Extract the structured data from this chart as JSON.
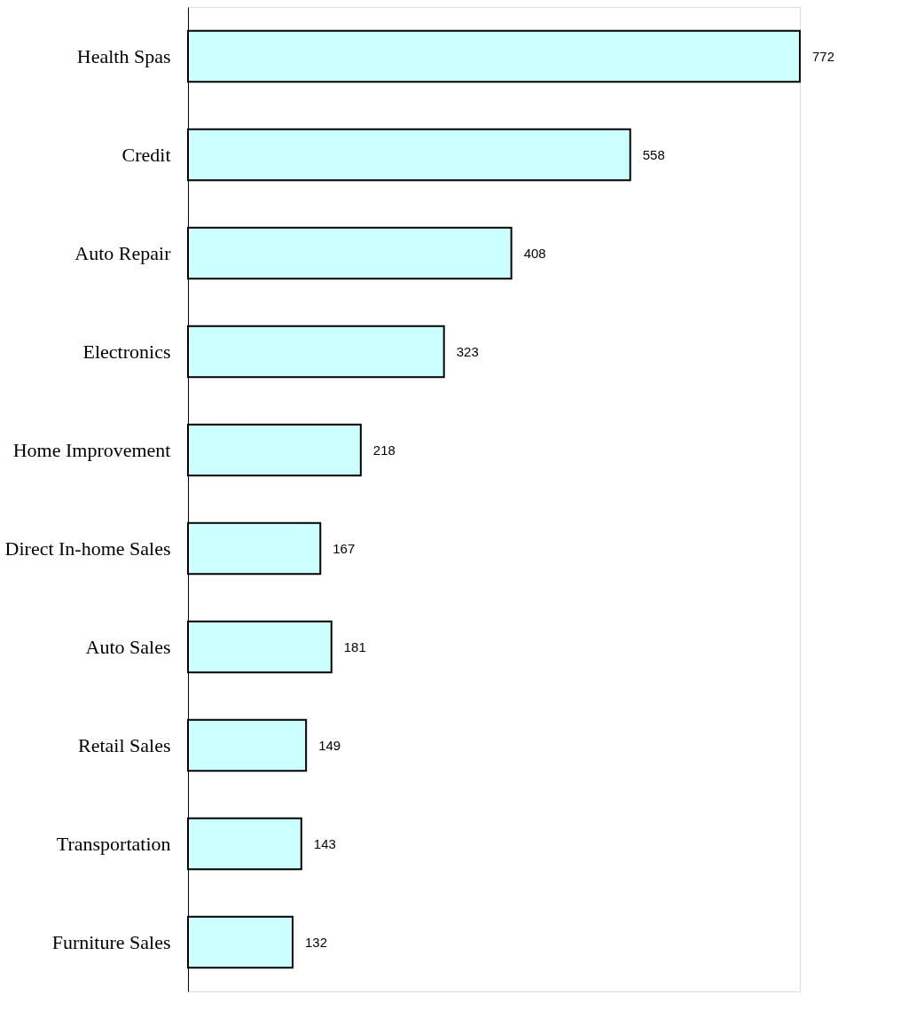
{
  "chart_data": {
    "type": "bar",
    "orientation": "horizontal",
    "categories": [
      "Health Spas",
      "Credit",
      "Auto Repair",
      "Electronics",
      "Home Improvement",
      "Direct In-home Sales",
      "Auto Sales",
      "Retail Sales",
      "Transportation",
      "Furniture Sales"
    ],
    "values": [
      772,
      558,
      408,
      323,
      218,
      167,
      181,
      149,
      143,
      132
    ],
    "color": "#ccffff",
    "data_labels": true,
    "grid": false
  }
}
